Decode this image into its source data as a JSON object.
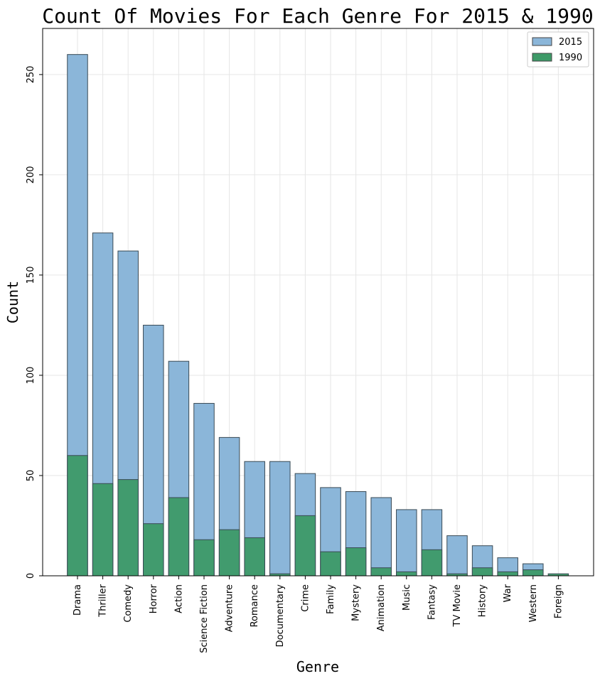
{
  "chart_data": {
    "type": "bar",
    "title": "Count Of Movies For Each Genre For 2015 & 1990",
    "xlabel": "Genre",
    "ylabel": "Count",
    "ylim": [
      0,
      273
    ],
    "yticks": [
      0,
      50,
      100,
      150,
      200,
      250
    ],
    "grid": true,
    "legend_position": "top-right",
    "categories": [
      "Drama",
      "Thriller",
      "Comedy",
      "Horror",
      "Action",
      "Science Fiction",
      "Adventure",
      "Romance",
      "Documentary",
      "Crime",
      "Family",
      "Mystery",
      "Animation",
      "Music",
      "Fantasy",
      "TV Movie",
      "History",
      "War",
      "Western",
      "Foreign"
    ],
    "series": [
      {
        "name": "2015",
        "color": "#8bb6d9",
        "values": [
          260,
          171,
          162,
          125,
          107,
          86,
          69,
          57,
          57,
          51,
          44,
          42,
          39,
          33,
          33,
          20,
          15,
          9,
          6,
          0
        ]
      },
      {
        "name": "1990",
        "color": "#3d9a68",
        "values": [
          60,
          46,
          48,
          26,
          39,
          18,
          23,
          19,
          1,
          30,
          12,
          14,
          4,
          2,
          13,
          1,
          4,
          2,
          3,
          1
        ]
      }
    ]
  }
}
